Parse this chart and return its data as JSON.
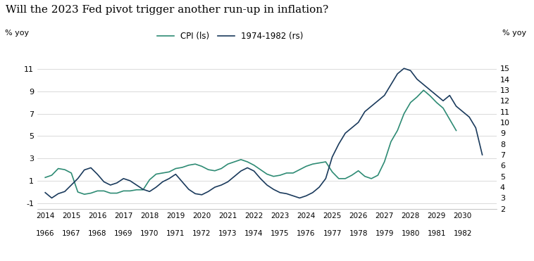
{
  "title": "Will the 2023 Fed pivot trigger another run-up in inflation?",
  "ylabel_left": "% yoy",
  "ylabel_right": "% yoy",
  "cpi_color": "#2e8b74",
  "hist_color": "#1a3a5c",
  "legend_labels": [
    "CPI (ls)",
    "1974-1982 (rs)"
  ],
  "ylim_left": [
    -1.5,
    12.5
  ],
  "ylim_right": [
    2.0,
    16.5
  ],
  "yticks_left": [
    -1,
    1,
    3,
    5,
    7,
    9,
    11
  ],
  "yticks_right": [
    2,
    3,
    4,
    5,
    6,
    7,
    8,
    9,
    10,
    11,
    12,
    13,
    14,
    15
  ],
  "xtick_top": [
    "2014",
    "2015",
    "2016",
    "2017",
    "2018",
    "2019",
    "2020",
    "2021",
    "2022",
    "2023",
    "2024",
    "2025",
    "2026",
    "2027",
    "2028",
    "2029",
    "2030"
  ],
  "xtick_bot": [
    "1966",
    "1967",
    "1968",
    "1969",
    "1970",
    "1971",
    "1972",
    "1973",
    "1974",
    "1975",
    "1976",
    "1977",
    "1978",
    "1979",
    "1980",
    "1981",
    "1982"
  ],
  "cpi_x": [
    0,
    0.25,
    0.5,
    0.75,
    1,
    1.25,
    1.5,
    1.75,
    2,
    2.25,
    2.5,
    2.75,
    3,
    3.25,
    3.5,
    3.75,
    4,
    4.25,
    4.5,
    4.75,
    5,
    5.25,
    5.5,
    5.75,
    6,
    6.25,
    6.5,
    6.75,
    7,
    7.25,
    7.5,
    7.75,
    8,
    8.25,
    8.5,
    8.75,
    9,
    9.25,
    9.5,
    9.75,
    10,
    10.25,
    10.5,
    10.75,
    11,
    11.25,
    11.5,
    11.75,
    12,
    12.25,
    12.5,
    12.75,
    13,
    13.25,
    13.5,
    13.75,
    14,
    14.25,
    14.5,
    14.75,
    15,
    15.25,
    15.5,
    15.75
  ],
  "cpi_y": [
    1.3,
    1.5,
    2.1,
    2.0,
    1.7,
    0.0,
    -0.2,
    -0.1,
    0.1,
    0.1,
    -0.1,
    -0.1,
    0.1,
    0.1,
    0.2,
    0.2,
    1.1,
    1.6,
    1.7,
    1.8,
    2.1,
    2.2,
    2.4,
    2.5,
    2.3,
    2.0,
    1.9,
    2.1,
    2.5,
    2.7,
    2.9,
    2.7,
    2.4,
    2.0,
    1.6,
    1.4,
    1.5,
    1.7,
    1.7,
    2.0,
    2.3,
    2.5,
    2.6,
    2.7,
    1.8,
    1.2,
    1.2,
    1.5,
    1.9,
    1.4,
    1.2,
    1.5,
    2.7,
    4.5,
    5.5,
    7.0,
    8.0,
    8.5,
    9.1,
    8.6,
    8.0,
    7.5,
    6.5,
    5.5
  ],
  "hist_x": [
    0,
    0.25,
    0.5,
    0.75,
    1,
    1.25,
    1.5,
    1.75,
    2,
    2.25,
    2.5,
    2.75,
    3,
    3.25,
    3.5,
    3.75,
    4,
    4.25,
    4.5,
    4.75,
    5,
    5.25,
    5.5,
    5.75,
    6,
    6.25,
    6.5,
    6.75,
    7,
    7.25,
    7.5,
    7.75,
    8,
    8.25,
    8.5,
    8.75,
    9,
    9.25,
    9.5,
    9.75,
    10,
    10.25,
    10.5,
    10.75,
    11,
    11.25,
    11.5,
    11.75,
    12,
    12.25,
    12.5,
    12.75,
    13,
    13.25,
    13.5,
    13.75,
    14,
    14.25,
    14.5,
    14.75,
    15,
    15.25,
    15.5,
    15.75,
    16,
    16.25,
    16.5,
    16.75
  ],
  "hist_y": [
    3.5,
    3.0,
    3.4,
    3.6,
    4.2,
    4.8,
    5.6,
    5.8,
    5.2,
    4.5,
    4.2,
    4.4,
    4.8,
    4.6,
    4.2,
    3.8,
    3.6,
    4.0,
    4.5,
    4.8,
    5.2,
    4.5,
    3.8,
    3.4,
    3.3,
    3.6,
    4.0,
    4.2,
    4.5,
    5.0,
    5.5,
    5.8,
    5.5,
    4.8,
    4.2,
    3.8,
    3.5,
    3.4,
    3.2,
    3.0,
    3.2,
    3.5,
    4.0,
    4.8,
    6.8,
    8.0,
    9.0,
    9.5,
    10.0,
    11.0,
    11.5,
    12.0,
    12.5,
    13.5,
    14.5,
    15.0,
    14.8,
    14.0,
    13.5,
    13.0,
    12.5,
    12.0,
    12.5,
    11.5,
    11.0,
    10.5,
    9.5,
    7.0
  ]
}
